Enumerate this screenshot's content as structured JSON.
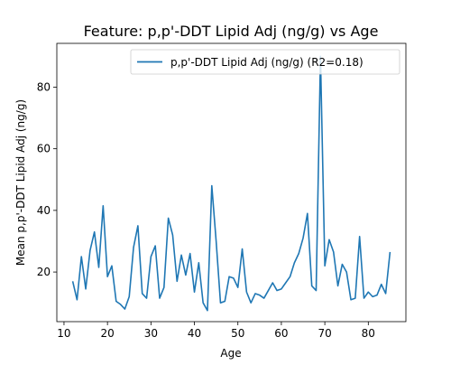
{
  "chart_data": {
    "type": "line",
    "title": "Feature: p,p'-DDT Lipid Adj (ng/g) vs Age",
    "xlabel": "Age",
    "ylabel": "Mean p,p'-DDT Lipid Adj (ng/g)",
    "xlim": [
      8.35,
      88.65
    ],
    "ylim": [
      3.9,
      94.2
    ],
    "xticks": [
      10,
      20,
      30,
      40,
      50,
      60,
      70,
      80
    ],
    "yticks": [
      20,
      40,
      60,
      80
    ],
    "grid": false,
    "legend_position": "top-right",
    "line_color": "#1f77b4",
    "series": [
      {
        "name": "p,p'-DDT Lipid Adj (ng/g) (R2=0.18)",
        "x": [
          12,
          13,
          14,
          15,
          16,
          17,
          18,
          19,
          20,
          21,
          22,
          23,
          24,
          25,
          26,
          27,
          28,
          29,
          30,
          31,
          32,
          33,
          34,
          35,
          36,
          37,
          38,
          39,
          40,
          41,
          42,
          43,
          44,
          45,
          46,
          47,
          48,
          49,
          50,
          51,
          52,
          53,
          54,
          55,
          56,
          57,
          58,
          59,
          60,
          61,
          62,
          63,
          64,
          65,
          66,
          67,
          68,
          69,
          70,
          71,
          72,
          73,
          74,
          75,
          76,
          77,
          78,
          79,
          80,
          81,
          82,
          83,
          84,
          85
        ],
        "y": [
          17,
          11,
          25,
          14.5,
          27,
          33,
          21.5,
          41.5,
          18.5,
          22,
          10.5,
          9.5,
          8,
          12,
          28,
          35,
          13,
          11.5,
          25,
          28.5,
          11.5,
          15,
          37.5,
          32,
          17,
          25.5,
          19,
          26,
          13.5,
          23,
          10,
          7.5,
          48,
          30,
          10,
          10.5,
          18.5,
          18,
          15,
          27.5,
          13.5,
          10,
          13,
          12.5,
          11.5,
          14,
          16.5,
          14,
          14.5,
          16.5,
          18.5,
          23,
          26,
          31,
          39,
          15.5,
          14,
          90,
          22,
          30.5,
          26.5,
          15.5,
          22.5,
          20,
          11,
          11.5,
          31.5,
          11.5,
          13.5,
          12,
          12.5,
          16,
          13,
          26.5
        ]
      }
    ]
  }
}
